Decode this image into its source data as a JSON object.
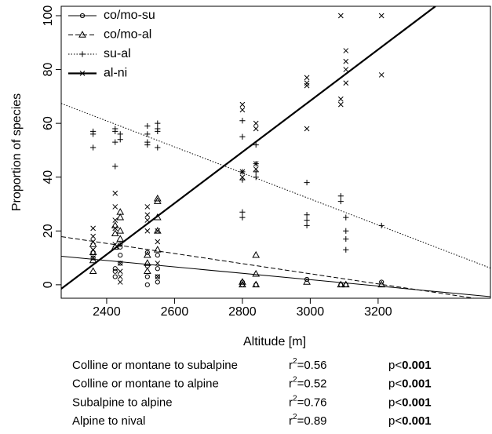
{
  "chart_data": {
    "type": "scatter",
    "xlabel": "Altitude [m]",
    "ylabel": "Proportion of species",
    "xlim": [
      2266,
      3531
    ],
    "ylim": [
      -5,
      103.5
    ],
    "xticks": [
      2400,
      2600,
      2800,
      3000,
      3200
    ],
    "yticks": [
      0,
      20,
      40,
      60,
      80,
      100
    ],
    "legend": "top-left",
    "series": [
      {
        "name": "co/mo-su",
        "color": "#000000",
        "marker": "circle",
        "dash": "solid",
        "line_width": 1,
        "x": [
          2360,
          2360,
          2425,
          2425,
          2425,
          2440,
          2440,
          2440,
          2440,
          2520,
          2520,
          2520,
          2520,
          2550,
          2550,
          2550,
          2550,
          2800,
          2800,
          2840,
          2990,
          3090,
          3105,
          3210
        ],
        "values": [
          12,
          10,
          6,
          5,
          3,
          15,
          14,
          11,
          8,
          12,
          7,
          3,
          0,
          11,
          6,
          3,
          1,
          1,
          0,
          0,
          2,
          0,
          0,
          1
        ],
        "fit": {
          "x": [
            2266,
            3531
          ],
          "values": [
            10.6,
            -4.4
          ]
        }
      },
      {
        "name": "co/mo-al",
        "color": "#000000",
        "marker": "triangle",
        "dash": "dashed",
        "line_width": 1,
        "x": [
          2360,
          2360,
          2360,
          2360,
          2425,
          2425,
          2425,
          2440,
          2440,
          2440,
          2440,
          2520,
          2520,
          2520,
          2550,
          2550,
          2550,
          2550,
          2550,
          2800,
          2800,
          2840,
          2840,
          2840,
          2990,
          3090,
          3105,
          3210
        ],
        "values": [
          15,
          12,
          9,
          5,
          22,
          19,
          14,
          27,
          25,
          20,
          17,
          11,
          8,
          5,
          32,
          31,
          25,
          20,
          13,
          1,
          0,
          11,
          4,
          0,
          1,
          0,
          0,
          0
        ],
        "fit": {
          "x": [
            2266,
            3531
          ],
          "values": [
            17.9,
            -5.9
          ]
        }
      },
      {
        "name": "su-al",
        "color": "#000000",
        "marker": "plus",
        "dash": "dotted",
        "line_width": 1,
        "x": [
          2360,
          2360,
          2360,
          2425,
          2425,
          2425,
          2425,
          2440,
          2440,
          2520,
          2520,
          2520,
          2520,
          2550,
          2550,
          2550,
          2550,
          2800,
          2800,
          2800,
          2800,
          2800,
          2800,
          2840,
          2840,
          2840,
          2840,
          2990,
          2990,
          2990,
          2990,
          3090,
          3090,
          3105,
          3105,
          3105,
          3105,
          3210
        ],
        "values": [
          57,
          56,
          51,
          58,
          57,
          53,
          44,
          56,
          54,
          59,
          56,
          53,
          52,
          60,
          58,
          57,
          51,
          61,
          55,
          42,
          39,
          27,
          25,
          52,
          45,
          42,
          40,
          38,
          26,
          24,
          22,
          33,
          31,
          25,
          20,
          17,
          13,
          22
        ],
        "fit": {
          "x": [
            2266,
            3531
          ],
          "values": [
            67.4,
            6.2
          ]
        }
      },
      {
        "name": "al-ni",
        "color": "#000000",
        "marker": "cross",
        "dash": "solid",
        "line_width": 2.2,
        "x": [
          2360,
          2360,
          2360,
          2360,
          2360,
          2425,
          2425,
          2425,
          2425,
          2425,
          2440,
          2440,
          2440,
          2440,
          2520,
          2520,
          2520,
          2520,
          2550,
          2550,
          2550,
          2550,
          2800,
          2800,
          2800,
          2800,
          2840,
          2840,
          2840,
          2840,
          2990,
          2990,
          2990,
          2990,
          3090,
          3090,
          3090,
          3105,
          3105,
          3105,
          3105,
          3210,
          3210
        ],
        "values": [
          21,
          18,
          16,
          13,
          10,
          34,
          29,
          24,
          21,
          15,
          8,
          5,
          3,
          1,
          29,
          26,
          24,
          20,
          20,
          16,
          8,
          3,
          67,
          65,
          42,
          40,
          60,
          58,
          45,
          43,
          77,
          75,
          74,
          58,
          100,
          69,
          67,
          87,
          83,
          80,
          75,
          100,
          78
        ],
        "fit": {
          "x": [
            2266,
            3369
          ],
          "values": [
            -1.5,
            103.5
          ]
        }
      }
    ]
  },
  "table": {
    "rows": [
      {
        "name": "Colline or montane to subalpine",
        "r": "r",
        "exp": "2",
        "r2": "=0.56",
        "p_sign": "p<",
        "p": "0.001"
      },
      {
        "name": "Colline or montane to alpine",
        "r": "r",
        "exp": "2",
        "r2": "=0.52",
        "p_sign": "p<",
        "p": "0.001"
      },
      {
        "name": "Subalpine to alpine",
        "r": "r",
        "exp": "2",
        "r2": "=0.76",
        "p_sign": "p<",
        "p": "0.001"
      },
      {
        "name": "Alpine to nival",
        "r": "r",
        "exp": "2",
        "r2": "=0.89",
        "p_sign": "p<",
        "p": "0.001"
      }
    ]
  }
}
